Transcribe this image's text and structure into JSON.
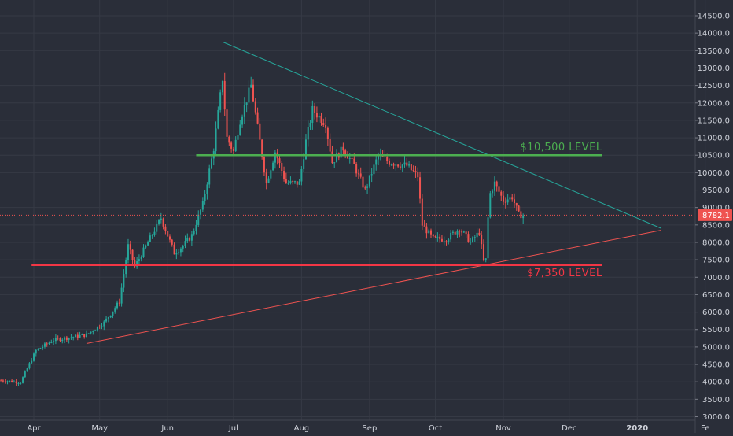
{
  "chart_data": {
    "type": "candlestick",
    "colors": {
      "background": "#2a2e39",
      "grid": "#363a45",
      "axis_text": "#d1d4dc",
      "up": "#26a69a",
      "down": "#ef5350",
      "resistance": "#4caf50",
      "support": "#f23645",
      "upper_trendline": "#26a69a",
      "lower_trendline": "#ef5350",
      "price_line": "#ef5350",
      "price_badge": "#ef5350"
    },
    "x_ticks": [
      "Apr",
      "May",
      "Jun",
      "Jul",
      "Aug",
      "Sep",
      "Oct",
      "Nov",
      "Dec",
      "2020",
      "Fe"
    ],
    "y_ticks": [
      "14500.0",
      "14000.0",
      "13500.0",
      "13000.0",
      "12500.0",
      "12000.0",
      "11500.0",
      "11000.0",
      "10500.0",
      "10000.0",
      "9500.0",
      "9000.0",
      "8500.0",
      "8000.0",
      "7500.0",
      "7000.0",
      "6500.0",
      "6000.0",
      "5500.0",
      "5000.0",
      "4500.0",
      "4000.0",
      "3500.0",
      "3000.0"
    ],
    "ylim": [
      3000,
      14750
    ],
    "current_price": "8782.1",
    "levels": [
      {
        "label": "$10,500 LEVEL",
        "value": 10500,
        "from": "2019-06-14",
        "to": "2019-12-16"
      },
      {
        "label": "$7,350 LEVEL",
        "value": 7350,
        "from": "2019-03-31",
        "to": "2019-12-16"
      }
    ],
    "trendlines": [
      {
        "name": "descending resistance",
        "points": [
          [
            "2019-06-26",
            13750
          ],
          [
            "2020-01-12",
            8400
          ]
        ]
      },
      {
        "name": "ascending support",
        "points": [
          [
            "2019-04-25",
            5100
          ],
          [
            "2020-01-12",
            8350
          ]
        ]
      }
    ],
    "anchors": [
      [
        "2019-03-17",
        4040
      ],
      [
        "2019-03-26",
        3990
      ],
      [
        "2019-04-02",
        4900
      ],
      [
        "2019-04-10",
        5200
      ],
      [
        "2019-04-25",
        5350
      ],
      [
        "2019-05-03",
        5700
      ],
      [
        "2019-05-10",
        6300
      ],
      [
        "2019-05-14",
        7900
      ],
      [
        "2019-05-17",
        7300
      ],
      [
        "2019-05-23",
        8000
      ],
      [
        "2019-05-29",
        8700
      ],
      [
        "2019-06-04",
        7700
      ],
      [
        "2019-06-08",
        7900
      ],
      [
        "2019-06-12",
        8200
      ],
      [
        "2019-06-17",
        9100
      ],
      [
        "2019-06-22",
        10700
      ],
      [
        "2019-06-26",
        12700
      ],
      [
        "2019-06-28",
        11000
      ],
      [
        "2019-07-01",
        10600
      ],
      [
        "2019-07-04",
        11500
      ],
      [
        "2019-07-09",
        12500
      ],
      [
        "2019-07-11",
        11700
      ],
      [
        "2019-07-16",
        9700
      ],
      [
        "2019-07-20",
        10600
      ],
      [
        "2019-07-25",
        9700
      ],
      [
        "2019-07-31",
        9700
      ],
      [
        "2019-08-03",
        10900
      ],
      [
        "2019-08-06",
        11800
      ],
      [
        "2019-08-09",
        11600
      ],
      [
        "2019-08-12",
        11400
      ],
      [
        "2019-08-15",
        10300
      ],
      [
        "2019-08-20",
        10700
      ],
      [
        "2019-08-25",
        10200
      ],
      [
        "2019-08-30",
        9500
      ],
      [
        "2019-09-05",
        10500
      ],
      [
        "2019-09-10",
        10300
      ],
      [
        "2019-09-18",
        10200
      ],
      [
        "2019-09-23",
        9900
      ],
      [
        "2019-09-25",
        8500
      ],
      [
        "2019-09-30",
        8100
      ],
      [
        "2019-10-06",
        8100
      ],
      [
        "2019-10-12",
        8400
      ],
      [
        "2019-10-17",
        8000
      ],
      [
        "2019-10-21",
        8300
      ],
      [
        "2019-10-23",
        7450
      ],
      [
        "2019-10-24",
        7500
      ],
      [
        "2019-10-25",
        8700
      ],
      [
        "2019-10-26",
        9400
      ],
      [
        "2019-10-28",
        9700
      ],
      [
        "2019-11-01",
        9200
      ],
      [
        "2019-11-05",
        9300
      ],
      [
        "2019-11-08",
        8800
      ],
      [
        "2019-11-10",
        8782
      ]
    ]
  }
}
